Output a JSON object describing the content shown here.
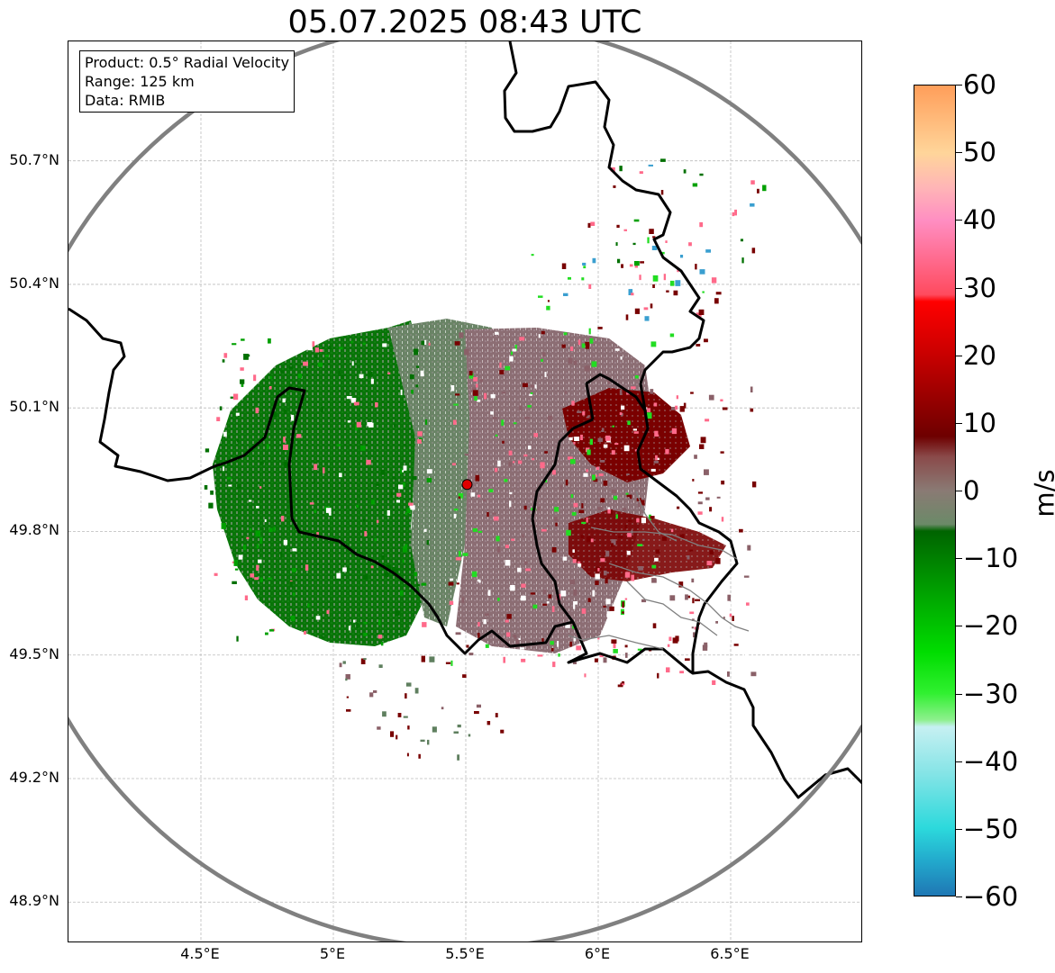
{
  "title": "05.07.2025 08:43 UTC",
  "info": {
    "product": "Product: 0.5° Radial Velocity",
    "range": "Range: 125 km",
    "data": "Data: RMIB"
  },
  "map_extent": {
    "lon": [
      4.0,
      7.0
    ],
    "lat": [
      48.8,
      50.99
    ]
  },
  "radar_site": {
    "lon": 5.505,
    "lat": 49.914,
    "range_km": 125
  },
  "lat_ticks": [
    {
      "value": 50.7,
      "label": "50.7°N"
    },
    {
      "value": 50.4,
      "label": "50.4°N"
    },
    {
      "value": 50.1,
      "label": "50.1°N"
    },
    {
      "value": 49.8,
      "label": "49.8°N"
    },
    {
      "value": 49.5,
      "label": "49.5°N"
    },
    {
      "value": 49.2,
      "label": "49.2°N"
    },
    {
      "value": 48.9,
      "label": "48.9°N"
    }
  ],
  "lon_ticks": [
    {
      "value": 4.5,
      "label": "4.5°E"
    },
    {
      "value": 5.0,
      "label": "5°E"
    },
    {
      "value": 5.5,
      "label": "5.5°E"
    },
    {
      "value": 6.0,
      "label": "6°E"
    },
    {
      "value": 6.5,
      "label": "6.5°E"
    }
  ],
  "colorbar": {
    "unit": "m/s",
    "min": -60,
    "max": 60,
    "ticks": [
      {
        "value": 60,
        "label": "60"
      },
      {
        "value": 50,
        "label": "50"
      },
      {
        "value": 40,
        "label": "40"
      },
      {
        "value": 30,
        "label": "30"
      },
      {
        "value": 20,
        "label": "20"
      },
      {
        "value": 10,
        "label": "10"
      },
      {
        "value": 0,
        "label": "0"
      },
      {
        "value": -10,
        "label": "−10"
      },
      {
        "value": -20,
        "label": "−20"
      },
      {
        "value": -30,
        "label": "−30"
      },
      {
        "value": -40,
        "label": "−40"
      },
      {
        "value": -50,
        "label": "−50"
      },
      {
        "value": -60,
        "label": "−60"
      }
    ],
    "stops": [
      {
        "value": -60,
        "color": "#1f77b4"
      },
      {
        "value": -55,
        "color": "#22a8cc"
      },
      {
        "value": -50,
        "color": "#2cd9dc"
      },
      {
        "value": -42,
        "color": "#84e4e6"
      },
      {
        "value": -35,
        "color": "#c6f0f2"
      },
      {
        "value": -34,
        "color": "#8ef08e"
      },
      {
        "value": -30,
        "color": "#30f030"
      },
      {
        "value": -24,
        "color": "#00dd00"
      },
      {
        "value": -16,
        "color": "#00a800"
      },
      {
        "value": -6,
        "color": "#006400"
      },
      {
        "value": -5,
        "color": "#6b8a68"
      },
      {
        "value": 0,
        "color": "#8a7a74"
      },
      {
        "value": 5,
        "color": "#8a4a4a"
      },
      {
        "value": 8,
        "color": "#6e0000"
      },
      {
        "value": 20,
        "color": "#c80000"
      },
      {
        "value": 28,
        "color": "#ff0000"
      },
      {
        "value": 29,
        "color": "#ff4a5e"
      },
      {
        "value": 40,
        "color": "#ff8ec2"
      },
      {
        "value": 45,
        "color": "#ffb6b6"
      },
      {
        "value": 50,
        "color": "#ffd59a"
      },
      {
        "value": 60,
        "color": "#ff9e5a"
      }
    ]
  },
  "colors": {
    "approaching": "#007000",
    "approaching_light": "#5f7f5f",
    "receding": "#8a6068",
    "receding_strong": "#780000",
    "range_ring": "#808080",
    "border": "#000000",
    "radar_marker": "#e00000"
  }
}
